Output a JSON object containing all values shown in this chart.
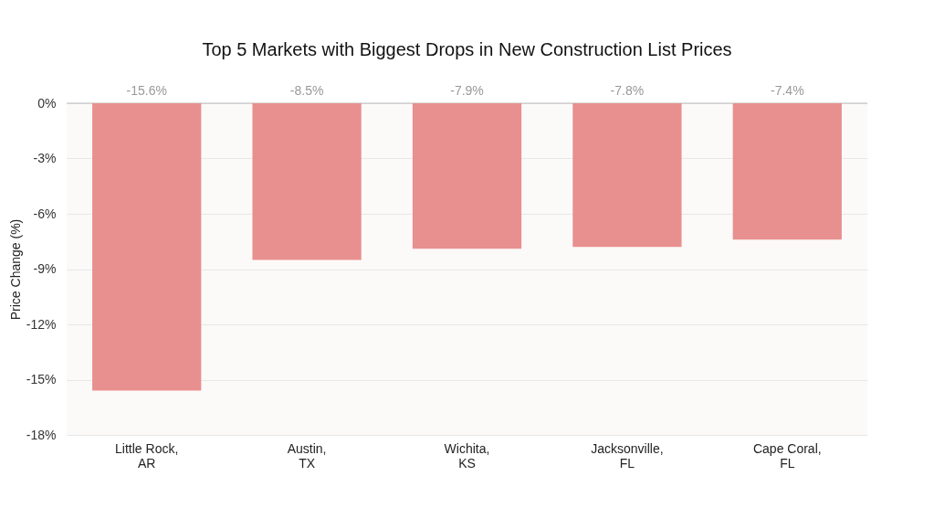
{
  "chart_data": {
    "type": "bar",
    "title": "Top 5 Markets with Biggest Drops in New Construction List Prices",
    "ylabel": "Price Change (%)",
    "categories": [
      "Little Rock,\nAR",
      "Austin,\nTX",
      "Wichita,\nKS",
      "Jacksonville,\nFL",
      "Cape Coral,\nFL"
    ],
    "values": [
      -15.6,
      -8.5,
      -7.9,
      -7.8,
      -7.4
    ],
    "value_labels": [
      "-15.6%",
      "-8.5%",
      "-7.9%",
      "-7.8%",
      "-7.4%"
    ],
    "color": "#e8908f",
    "ylim": [
      -18,
      0
    ],
    "yticks": [
      {
        "value": 0,
        "label": "0%"
      },
      {
        "value": -3,
        "label": "-3%"
      },
      {
        "value": -6,
        "label": "-6%"
      },
      {
        "value": -9,
        "label": "-9%"
      },
      {
        "value": -12,
        "label": "-12%"
      },
      {
        "value": -15,
        "label": "-15%"
      },
      {
        "value": -18,
        "label": "-18%"
      }
    ],
    "grid": "y"
  }
}
